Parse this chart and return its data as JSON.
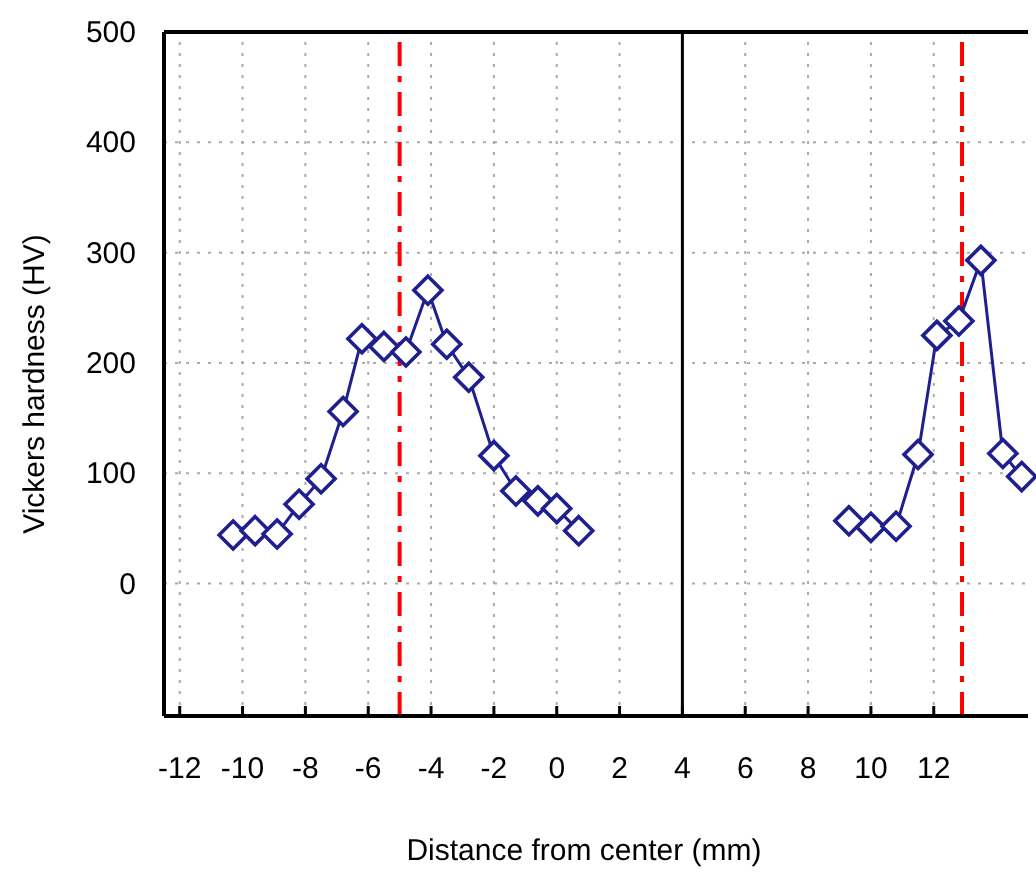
{
  "chart_data": {
    "type": "line",
    "xlabel": "Distance from center (mm)",
    "ylabel": "Vickers hardness (HV)",
    "xlim": [
      -12.5,
      15
    ],
    "ylim": [
      -120,
      500
    ],
    "xticks": [
      -12,
      -10,
      -8,
      -6,
      -4,
      -2,
      0,
      2,
      4,
      6,
      8,
      10,
      12
    ],
    "yticks": [
      0,
      100,
      200,
      300,
      400,
      500
    ],
    "grid": true,
    "marker": "diamond",
    "line_style": "solid",
    "series": [
      {
        "color": "#1f1f8f",
        "x": [
          -10.3,
          -9.6,
          -8.9,
          -8.2,
          -7.5,
          -6.8,
          -6.2,
          -5.5,
          -4.8,
          -4.1,
          -3.5,
          -2.8,
          -2.0,
          -1.3,
          -0.6,
          0.0,
          0.7
        ],
        "values": [
          44,
          48,
          45,
          72,
          95,
          156,
          222,
          215,
          210,
          266,
          217,
          187,
          116,
          84,
          75,
          68,
          48
        ]
      },
      {
        "color": "#1f1f8f",
        "x": [
          9.3,
          10.0,
          10.8,
          11.5,
          12.1,
          12.8,
          13.5,
          14.2,
          14.8
        ],
        "values": [
          57,
          51,
          52,
          117,
          225,
          238,
          293,
          118,
          97
        ]
      }
    ],
    "ref_lines": [
      {
        "axis": "x",
        "value": 4,
        "color": "#000000",
        "line_style": "solid"
      },
      {
        "axis": "x",
        "value": -5,
        "color": "#ff0000",
        "line_style": "dashed"
      },
      {
        "axis": "x",
        "value": 12.9,
        "color": "#ff0000",
        "line_style": "dashed"
      }
    ]
  }
}
